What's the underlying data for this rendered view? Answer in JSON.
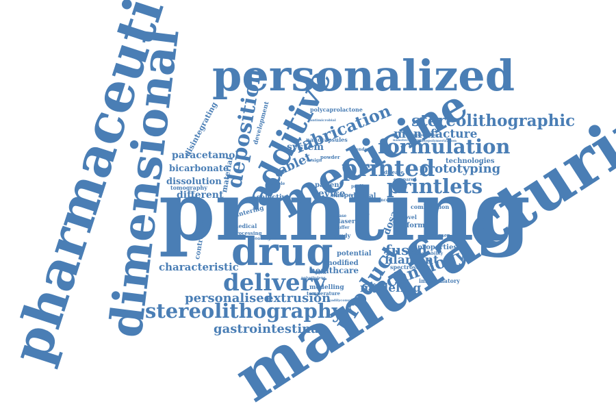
{
  "palette": {
    "word_color": "#4a7eb5",
    "background": "#ffffff"
  },
  "words": {
    "printing": "printing",
    "manufacturing": "manufacturing",
    "pharmaceutical": "pharmaceutical",
    "dimensional": "dimensional",
    "personalized": "personalized",
    "medicine": "medicine",
    "drug": "drug",
    "additive": "additive",
    "delivery": "delivery",
    "stereolithography": "stereolithography",
    "formulation": "formulation",
    "stereolithographic": "stereolithographic",
    "printed": "printed",
    "printlets": "printlets",
    "deposition": "deposition",
    "fabrication": "fabrication",
    "product": "product",
    "technology": "technology",
    "personalised": "personalised",
    "extrusion": "extrusion",
    "gastrointestinal": "gastrointestinal",
    "modeling": "modeling",
    "manufacture": "manufacture",
    "prototyping": "prototyping",
    "tablet": "tablet",
    "fused": "fused",
    "filament": "filament",
    "characteristic": "characteristic",
    "bicarbonate": "bicarbonate",
    "paracetamol": "paracetamol",
    "dissolution": "dissolution",
    "different": "different",
    "system": "system",
    "device": "device",
    "healthcare": "healthcare",
    "technologies": "technologies",
    "disintegrating": "disintegrating",
    "material": "material",
    "tomography": "tomography",
    "polycaprolactone": "polycaprolactone",
    "nanocapsules": "nanocapsules",
    "selective": "selective",
    "patient": "patient",
    "digital": "digital",
    "dosage": "dosage",
    "potential": "potential",
    "modified": "modified",
    "form": "form",
    "properties": "properties",
    "combination": "combination",
    "spectroscopy": "spectroscopy",
    "inflammatory": "inflammatory",
    "modelling": "modelling",
    "controlled": "controlled",
    "development": "development",
    "rapid": "rapid",
    "shape": "shape",
    "novel": "novel",
    "laser": "laser",
    "sintering": "sintering",
    "medical": "medical",
    "processing": "processing",
    "study": "study",
    "powder": "powder",
    "temperature": "temperature",
    "polymer": "polymer",
    "disease": "disease",
    "compared": "compared",
    "science": "science",
    "buffer": "buffer",
    "multiple": "multiple",
    "dependent": "dependent",
    "design": "design",
    "profile": "profile",
    "release": "release",
    "loading": "loading",
    "engineering": "engineering",
    "acceptability": "acceptability",
    "nanotechnology": "nanotechnology",
    "photopolymerization": "photopolymerization",
    "antimicrobial": "antimicrobial",
    "polyethylene": "polyethylene",
    "glycol": "glycol",
    "readilycompliance": "readilycompliance"
  }
}
